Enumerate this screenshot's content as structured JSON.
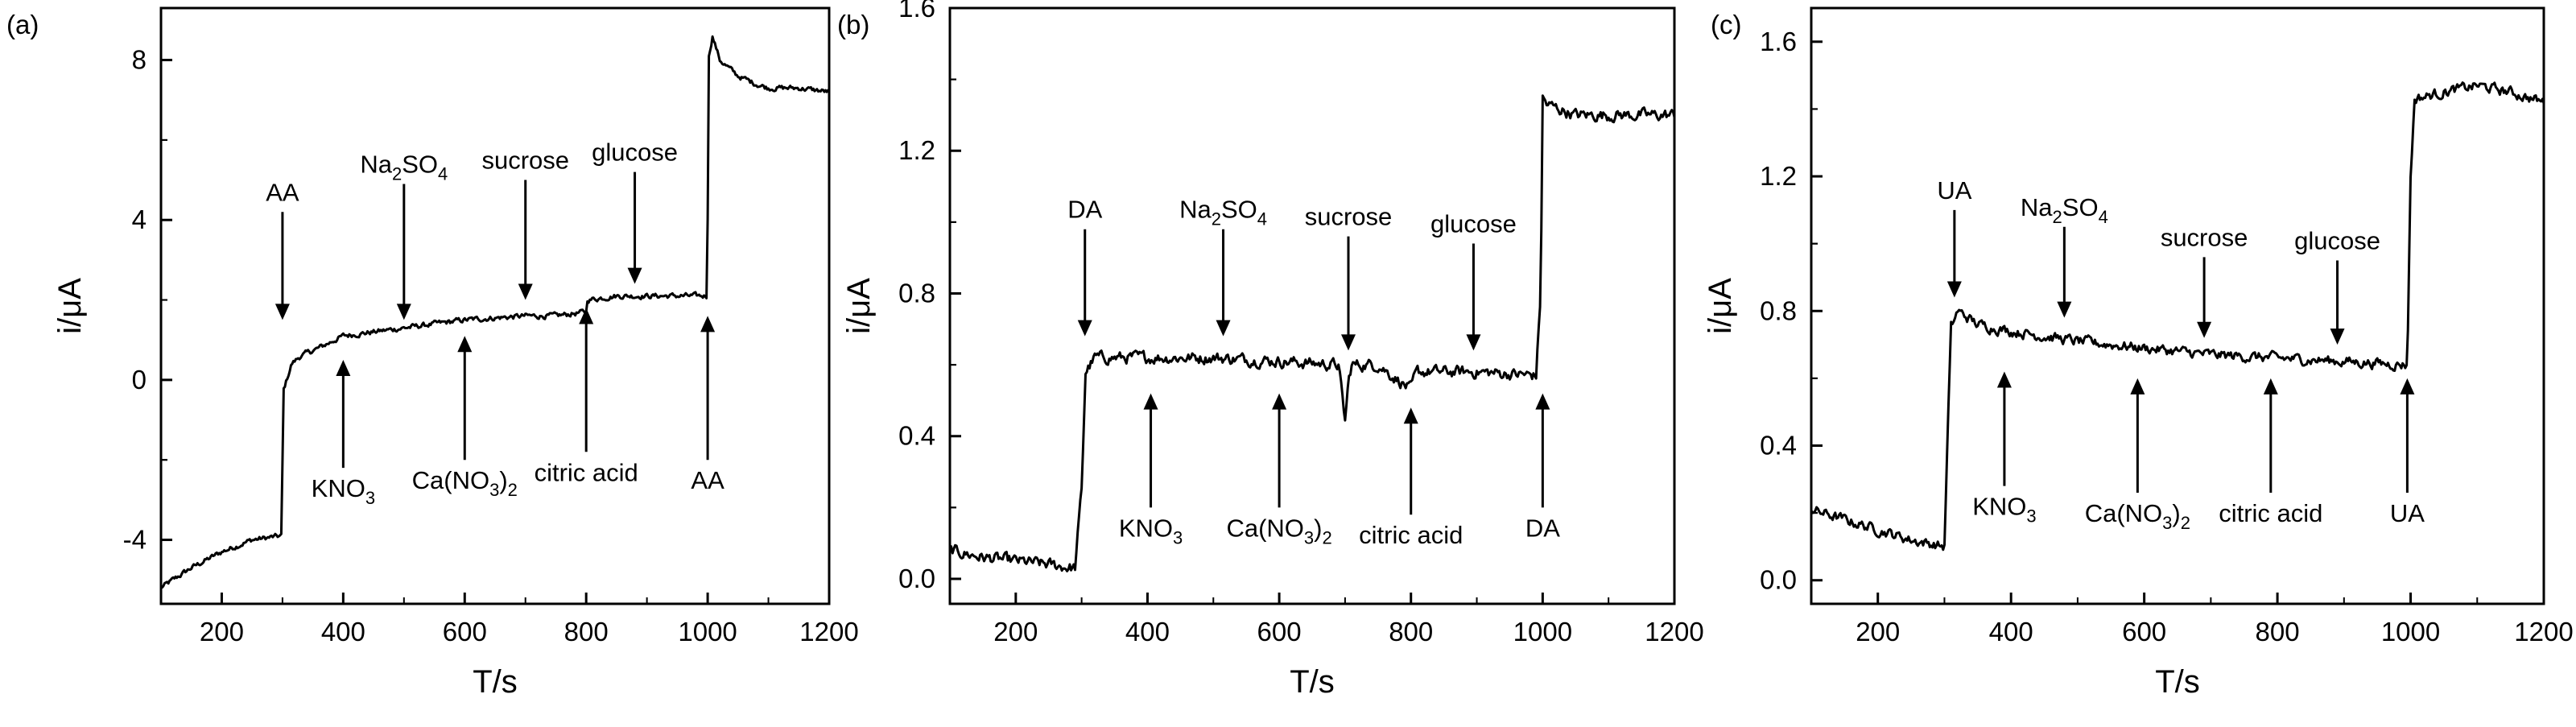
{
  "chart_data": [
    {
      "panel_label": "(a)",
      "type": "line",
      "xlabel": "T/s",
      "ylabel": "i/μA",
      "xlim": [
        100,
        1200
      ],
      "ylim": [
        -5.6,
        9.3
      ],
      "xticks": [
        200,
        400,
        600,
        800,
        1000,
        1200
      ],
      "xtick_labels": [
        "200",
        "400",
        "600",
        "800",
        "1000",
        "1200"
      ],
      "yticks": [
        -4,
        0,
        4,
        8
      ],
      "ytick_labels": [
        "-4",
        "0",
        "4",
        "8"
      ],
      "noise": 0.12,
      "series": [
        {
          "x": [
            100,
            150,
            200,
            250,
            299,
            301,
            315,
            330,
            360,
            400,
            450,
            500,
            600,
            700,
            750,
            800,
            801,
            850,
            900,
            950,
            999,
            1002,
            1008,
            1020,
            1050,
            1080,
            1100,
            1150,
            1200
          ],
          "y": [
            -5.2,
            -4.7,
            -4.3,
            -4.0,
            -3.9,
            -0.3,
            0.4,
            0.6,
            0.8,
            1.1,
            1.2,
            1.3,
            1.5,
            1.6,
            1.6,
            1.7,
            2.0,
            2.1,
            2.1,
            2.1,
            2.1,
            8.1,
            8.6,
            8.0,
            7.6,
            7.4,
            7.3,
            7.3,
            7.2
          ]
        }
      ],
      "annotations": [
        {
          "main": "AA",
          "sub": "",
          "tail": "",
          "x": 300,
          "dir": "down",
          "tip": 1.5,
          "base": 4.2
        },
        {
          "main": "KNO",
          "sub": "3",
          "tail": "",
          "x": 400,
          "dir": "up",
          "tip": 0.5,
          "base": -2.2
        },
        {
          "main": "Na",
          "sub": "2",
          "tail": "SO",
          "sub2": "4",
          "x": 500,
          "dir": "down",
          "tip": 1.5,
          "base": 4.9
        },
        {
          "main": "Ca(NO",
          "sub": "3",
          "tail": ")",
          "sub2": "2",
          "x": 600,
          "dir": "up",
          "tip": 1.1,
          "base": -2.0
        },
        {
          "main": "sucrose",
          "sub": "",
          "tail": "",
          "x": 700,
          "dir": "down",
          "tip": 2.0,
          "base": 5.0
        },
        {
          "main": "citric acid",
          "sub": "",
          "tail": "",
          "x": 800,
          "dir": "up",
          "tip": 1.8,
          "base": -1.8
        },
        {
          "main": "glucose",
          "sub": "",
          "tail": "",
          "x": 880,
          "dir": "down",
          "tip": 2.4,
          "base": 5.2
        },
        {
          "main": "AA",
          "sub": "",
          "tail": "",
          "x": 1000,
          "dir": "up",
          "tip": 1.6,
          "base": -2.0
        }
      ]
    },
    {
      "panel_label": "(b)",
      "type": "line",
      "xlabel": "T/s",
      "ylabel": "i/μA",
      "xlim": [
        100,
        1200
      ],
      "ylim": [
        -0.07,
        1.6
      ],
      "xticks": [
        200,
        400,
        600,
        800,
        1000,
        1200
      ],
      "xtick_labels": [
        "200",
        "400",
        "600",
        "800",
        "1000",
        "1200"
      ],
      "yticks": [
        0.0,
        0.4,
        0.8,
        1.2,
        1.6
      ],
      "ytick_labels": [
        "0.0",
        "0.4",
        "0.8",
        "1.2",
        "1.6"
      ],
      "noise": 0.03,
      "series": [
        {
          "x": [
            100,
            150,
            200,
            250,
            290,
            300,
            306,
            320,
            400,
            500,
            600,
            690,
            700,
            705,
            710,
            750,
            800,
            805,
            810,
            900,
            990,
            997,
            1000,
            1006,
            1050,
            1100,
            1150,
            1200
          ],
          "y": [
            0.08,
            0.06,
            0.05,
            0.04,
            0.03,
            0.25,
            0.58,
            0.62,
            0.62,
            0.62,
            0.61,
            0.6,
            0.44,
            0.55,
            0.6,
            0.6,
            0.53,
            0.56,
            0.58,
            0.58,
            0.57,
            0.8,
            1.35,
            1.33,
            1.3,
            1.3,
            1.3,
            1.3
          ]
        }
      ],
      "annotations": [
        {
          "main": "DA",
          "sub": "",
          "tail": "",
          "x": 305,
          "dir": "down",
          "tip": 0.68,
          "base": 0.98
        },
        {
          "main": "KNO",
          "sub": "3",
          "tail": "",
          "x": 405,
          "dir": "up",
          "tip": 0.52,
          "base": 0.2
        },
        {
          "main": "Na",
          "sub": "2",
          "tail": "SO",
          "sub2": "4",
          "x": 515,
          "dir": "down",
          "tip": 0.68,
          "base": 0.98
        },
        {
          "main": "Ca(NO",
          "sub": "3",
          "tail": ")",
          "sub2": "2",
          "x": 600,
          "dir": "up",
          "tip": 0.52,
          "base": 0.2
        },
        {
          "main": "sucrose",
          "sub": "",
          "tail": "",
          "x": 705,
          "dir": "down",
          "tip": 0.64,
          "base": 0.96
        },
        {
          "main": "citric acid",
          "sub": "",
          "tail": "",
          "x": 800,
          "dir": "up",
          "tip": 0.48,
          "base": 0.18
        },
        {
          "main": "glucose",
          "sub": "",
          "tail": "",
          "x": 895,
          "dir": "down",
          "tip": 0.64,
          "base": 0.94
        },
        {
          "main": "DA",
          "sub": "",
          "tail": "",
          "x": 1000,
          "dir": "up",
          "tip": 0.52,
          "base": 0.2
        }
      ]
    },
    {
      "panel_label": "(c)",
      "type": "line",
      "xlabel": "T/s",
      "ylabel": "i/μA",
      "xlim": [
        100,
        1200
      ],
      "ylim": [
        -0.07,
        1.7
      ],
      "xticks": [
        200,
        400,
        600,
        800,
        1000,
        1200
      ],
      "xtick_labels": [
        "200",
        "400",
        "600",
        "800",
        "1000",
        "1200"
      ],
      "yticks": [
        0.0,
        0.4,
        0.8,
        1.2,
        1.6
      ],
      "ytick_labels": [
        "0.0",
        "0.4",
        "0.8",
        "1.2",
        "1.6"
      ],
      "noise": 0.028,
      "series": [
        {
          "x": [
            100,
            150,
            200,
            250,
            300,
            305,
            310,
            320,
            350,
            400,
            500,
            600,
            700,
            800,
            900,
            995,
            1000,
            1006,
            1050,
            1100,
            1150,
            1200
          ],
          "y": [
            0.21,
            0.18,
            0.15,
            0.12,
            0.1,
            0.45,
            0.75,
            0.8,
            0.76,
            0.74,
            0.71,
            0.69,
            0.67,
            0.66,
            0.65,
            0.64,
            1.2,
            1.43,
            1.45,
            1.47,
            1.45,
            1.42
          ]
        }
      ],
      "annotations": [
        {
          "main": "UA",
          "sub": "",
          "tail": "",
          "x": 315,
          "dir": "down",
          "tip": 0.84,
          "base": 1.1
        },
        {
          "main": "KNO",
          "sub": "3",
          "tail": "",
          "x": 390,
          "dir": "up",
          "tip": 0.62,
          "base": 0.28
        },
        {
          "main": "Na",
          "sub": "2",
          "tail": "SO",
          "sub2": "4",
          "x": 480,
          "dir": "down",
          "tip": 0.78,
          "base": 1.05
        },
        {
          "main": "Ca(NO",
          "sub": "3",
          "tail": ")",
          "sub2": "2",
          "x": 590,
          "dir": "up",
          "tip": 0.6,
          "base": 0.26
        },
        {
          "main": "sucrose",
          "sub": "",
          "tail": "",
          "x": 690,
          "dir": "down",
          "tip": 0.72,
          "base": 0.96
        },
        {
          "main": "citric acid",
          "sub": "",
          "tail": "",
          "x": 790,
          "dir": "up",
          "tip": 0.6,
          "base": 0.26
        },
        {
          "main": "glucose",
          "sub": "",
          "tail": "",
          "x": 890,
          "dir": "down",
          "tip": 0.7,
          "base": 0.95
        },
        {
          "main": "UA",
          "sub": "",
          "tail": "",
          "x": 995,
          "dir": "up",
          "tip": 0.6,
          "base": 0.26
        }
      ]
    }
  ]
}
